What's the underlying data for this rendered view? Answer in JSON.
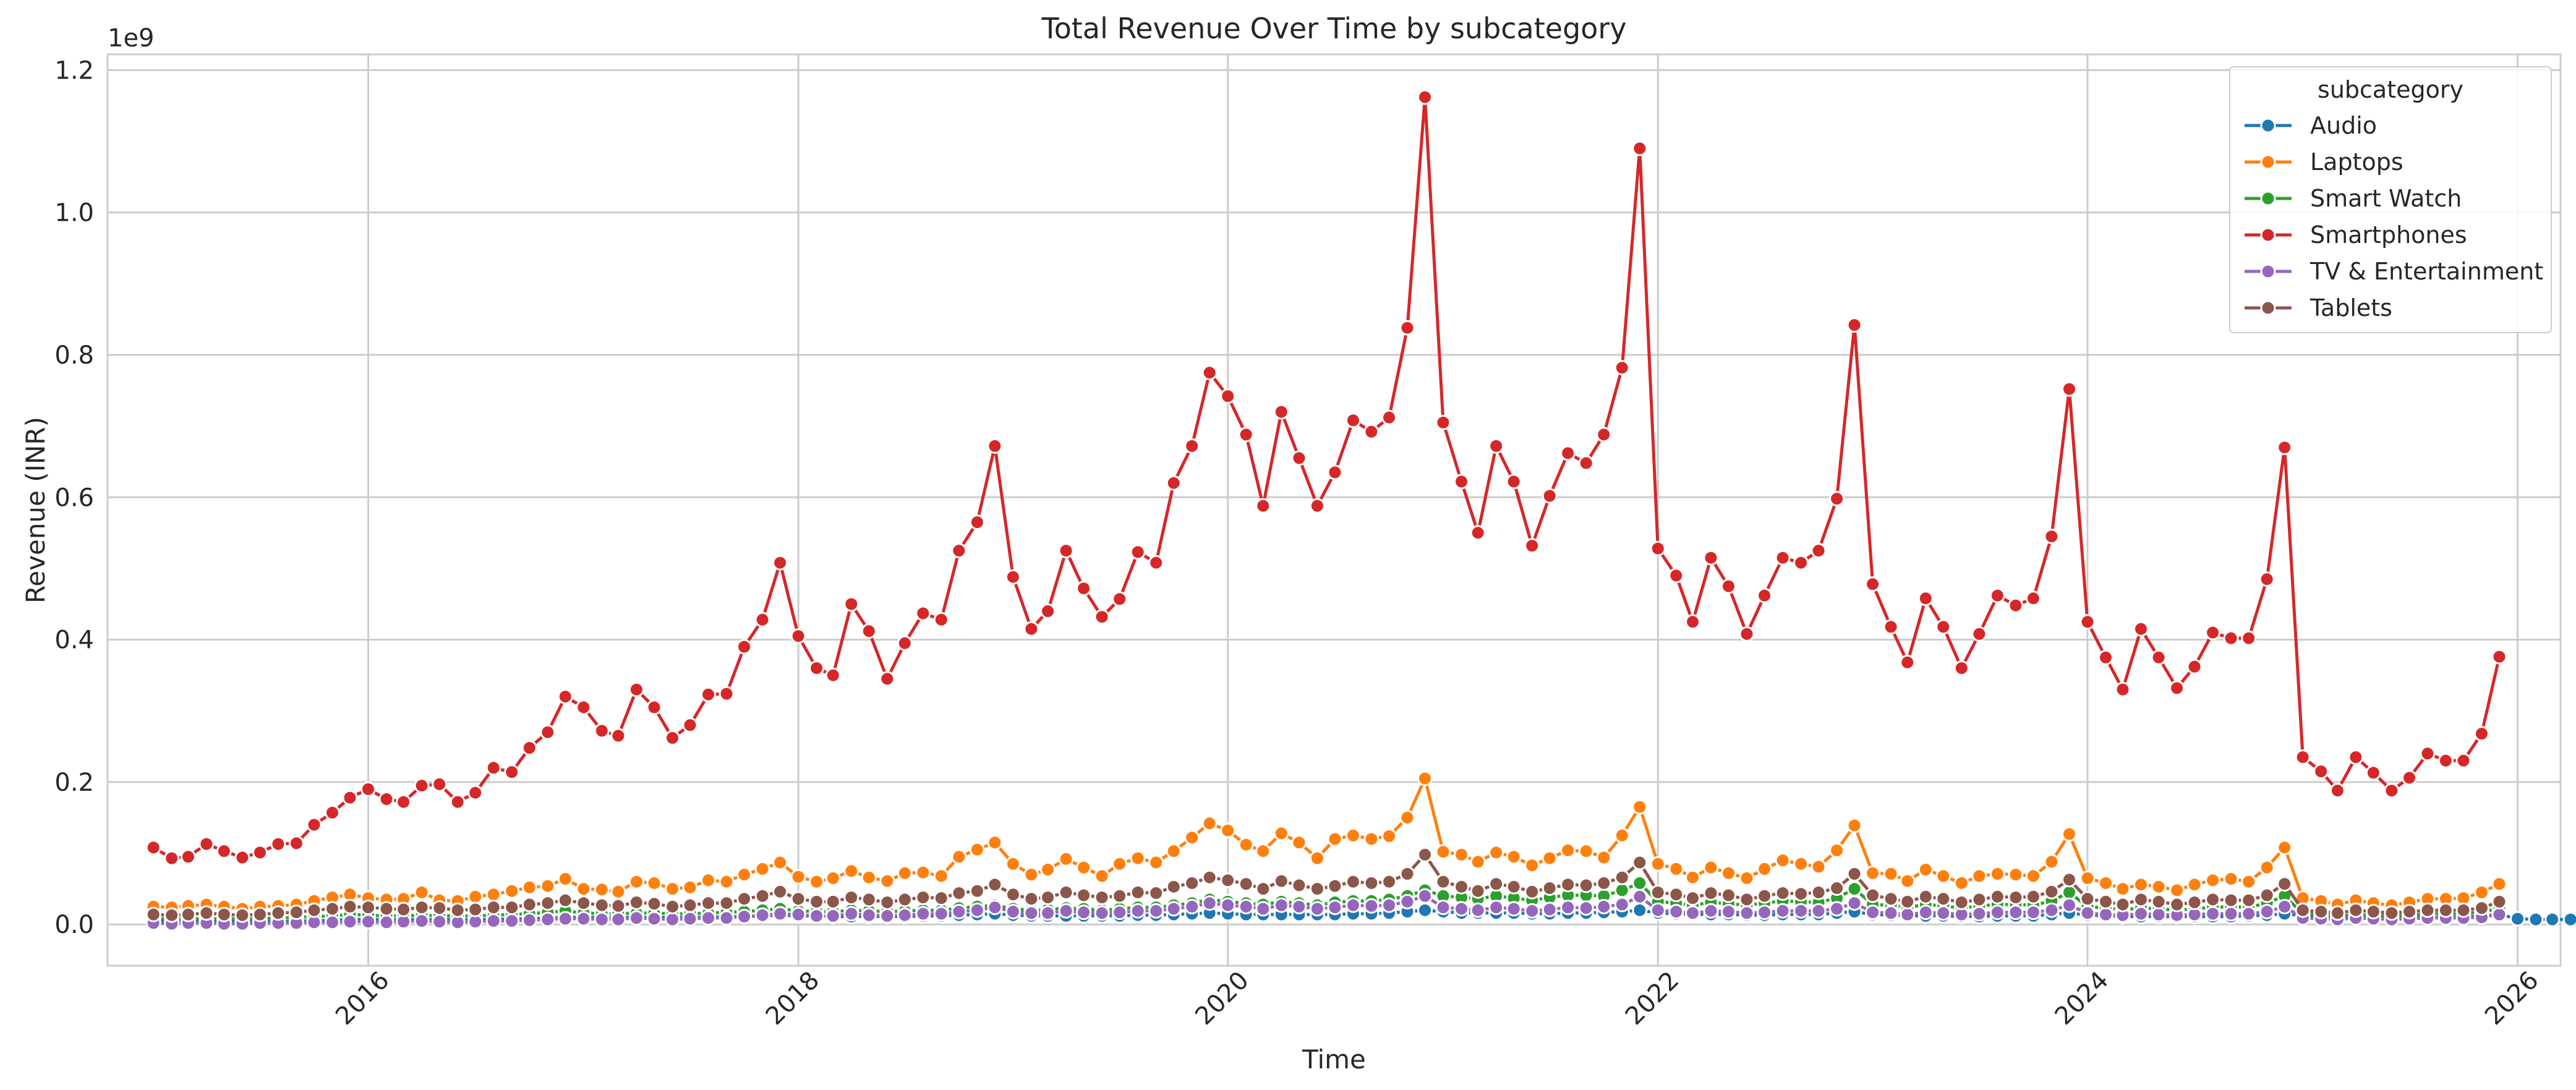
{
  "chart_data": {
    "type": "line",
    "title": "Total Revenue Over Time by subcategory",
    "xlabel": "Time",
    "ylabel": "Revenue (INR)",
    "y_offset_label": "1e9",
    "x_start": "2015-01",
    "x_freq": "monthly",
    "xlim": [
      "2014-10-15",
      "2026-03-15"
    ],
    "ylim": [
      -0.058,
      1.222
    ],
    "x_ticks": [
      "2016",
      "2018",
      "2020",
      "2022",
      "2024",
      "2026"
    ],
    "y_ticks": [
      "0.0",
      "0.2",
      "0.4",
      "0.6",
      "0.8",
      "1.0",
      "1.2"
    ],
    "grid": true,
    "legend": {
      "title": "subcategory",
      "position": "top-right"
    },
    "series": [
      {
        "name": "Audio",
        "color": "#1f77b4",
        "values": [
          0.004,
          0.004,
          0.004,
          0.004,
          0.004,
          0.004,
          0.004,
          0.004,
          0.005,
          0.005,
          0.006,
          0.007,
          0.007,
          0.007,
          0.007,
          0.007,
          0.007,
          0.007,
          0.007,
          0.007,
          0.008,
          0.008,
          0.009,
          0.01,
          0.01,
          0.01,
          0.01,
          0.01,
          0.01,
          0.01,
          0.01,
          0.01,
          0.011,
          0.011,
          0.012,
          0.013,
          0.012,
          0.012,
          0.011,
          0.011,
          0.011,
          0.011,
          0.011,
          0.012,
          0.012,
          0.013,
          0.014,
          0.015,
          0.013,
          0.012,
          0.012,
          0.012,
          0.012,
          0.012,
          0.012,
          0.013,
          0.013,
          0.014,
          0.015,
          0.016,
          0.015,
          0.014,
          0.014,
          0.014,
          0.014,
          0.014,
          0.014,
          0.015,
          0.015,
          0.016,
          0.018,
          0.02,
          0.018,
          0.016,
          0.016,
          0.016,
          0.016,
          0.015,
          0.015,
          0.016,
          0.016,
          0.017,
          0.018,
          0.02,
          0.016,
          0.015,
          0.014,
          0.014,
          0.014,
          0.013,
          0.013,
          0.014,
          0.014,
          0.014,
          0.016,
          0.018,
          0.014,
          0.013,
          0.012,
          0.012,
          0.012,
          0.011,
          0.011,
          0.012,
          0.012,
          0.012,
          0.014,
          0.016,
          0.013,
          0.012,
          0.011,
          0.011,
          0.011,
          0.011,
          0.011,
          0.011,
          0.011,
          0.012,
          0.013,
          0.015,
          0.012,
          0.011,
          0.01,
          0.01,
          0.01,
          0.01,
          0.01,
          0.01,
          0.01,
          0.011,
          0.012,
          0.014,
          0.008,
          0.007,
          0.007,
          0.007,
          0.007,
          0.006,
          0.006,
          0.007,
          0.007,
          0.007,
          0.008,
          0.009
        ]
      },
      {
        "name": "Laptops",
        "color": "#ff7f0e",
        "values": [
          0.025,
          0.024,
          0.026,
          0.028,
          0.025,
          0.022,
          0.025,
          0.026,
          0.028,
          0.033,
          0.038,
          0.042,
          0.037,
          0.035,
          0.036,
          0.045,
          0.034,
          0.033,
          0.039,
          0.042,
          0.047,
          0.052,
          0.054,
          0.064,
          0.05,
          0.049,
          0.046,
          0.06,
          0.058,
          0.05,
          0.052,
          0.062,
          0.06,
          0.07,
          0.078,
          0.087,
          0.067,
          0.06,
          0.065,
          0.075,
          0.066,
          0.061,
          0.072,
          0.073,
          0.068,
          0.095,
          0.105,
          0.115,
          0.085,
          0.07,
          0.077,
          0.092,
          0.08,
          0.068,
          0.085,
          0.093,
          0.087,
          0.103,
          0.122,
          0.142,
          0.132,
          0.112,
          0.103,
          0.128,
          0.115,
          0.093,
          0.12,
          0.125,
          0.12,
          0.124,
          0.15,
          0.205,
          0.102,
          0.098,
          0.088,
          0.101,
          0.095,
          0.083,
          0.093,
          0.104,
          0.103,
          0.094,
          0.125,
          0.165,
          0.085,
          0.078,
          0.066,
          0.08,
          0.072,
          0.065,
          0.078,
          0.09,
          0.085,
          0.081,
          0.104,
          0.139,
          0.072,
          0.071,
          0.061,
          0.077,
          0.068,
          0.058,
          0.068,
          0.071,
          0.07,
          0.068,
          0.088,
          0.127,
          0.065,
          0.058,
          0.05,
          0.056,
          0.053,
          0.048,
          0.056,
          0.062,
          0.064,
          0.06,
          0.08,
          0.108,
          0.037,
          0.033,
          0.028,
          0.034,
          0.03,
          0.027,
          0.031,
          0.036,
          0.036,
          0.037,
          0.045,
          0.057
        ]
      },
      {
        "name": "Smart Watch",
        "color": "#2ca02c",
        "values": [
          0.008,
          0.008,
          0.008,
          0.008,
          0.008,
          0.008,
          0.008,
          0.009,
          0.01,
          0.011,
          0.012,
          0.014,
          0.013,
          0.012,
          0.012,
          0.013,
          0.012,
          0.012,
          0.012,
          0.013,
          0.014,
          0.015,
          0.017,
          0.019,
          0.016,
          0.015,
          0.015,
          0.016,
          0.016,
          0.015,
          0.015,
          0.016,
          0.017,
          0.018,
          0.02,
          0.022,
          0.019,
          0.018,
          0.018,
          0.02,
          0.019,
          0.018,
          0.019,
          0.02,
          0.02,
          0.023,
          0.025,
          0.027,
          0.022,
          0.02,
          0.021,
          0.023,
          0.022,
          0.02,
          0.022,
          0.024,
          0.024,
          0.027,
          0.03,
          0.035,
          0.032,
          0.03,
          0.028,
          0.032,
          0.03,
          0.027,
          0.031,
          0.033,
          0.033,
          0.035,
          0.04,
          0.048,
          0.04,
          0.038,
          0.036,
          0.04,
          0.037,
          0.034,
          0.038,
          0.041,
          0.041,
          0.04,
          0.048,
          0.058,
          0.032,
          0.03,
          0.027,
          0.031,
          0.029,
          0.027,
          0.03,
          0.033,
          0.032,
          0.031,
          0.037,
          0.05,
          0.028,
          0.027,
          0.024,
          0.028,
          0.026,
          0.023,
          0.026,
          0.028,
          0.028,
          0.027,
          0.033,
          0.045,
          0.025,
          0.023,
          0.021,
          0.023,
          0.022,
          0.02,
          0.022,
          0.024,
          0.025,
          0.024,
          0.03,
          0.04,
          0.015,
          0.014,
          0.012,
          0.014,
          0.013,
          0.012,
          0.013,
          0.015,
          0.015,
          0.015,
          0.018,
          0.022
        ]
      },
      {
        "name": "Smartphones",
        "color": "#d62728",
        "values": [
          0.108,
          0.093,
          0.095,
          0.113,
          0.103,
          0.094,
          0.101,
          0.113,
          0.114,
          0.14,
          0.157,
          0.178,
          0.19,
          0.176,
          0.172,
          0.195,
          0.197,
          0.172,
          0.185,
          0.22,
          0.214,
          0.248,
          0.27,
          0.32,
          0.305,
          0.272,
          0.265,
          0.33,
          0.305,
          0.262,
          0.28,
          0.323,
          0.324,
          0.39,
          0.428,
          0.508,
          0.405,
          0.36,
          0.35,
          0.45,
          0.412,
          0.345,
          0.395,
          0.437,
          0.428,
          0.525,
          0.565,
          0.672,
          0.488,
          0.415,
          0.44,
          0.525,
          0.472,
          0.432,
          0.457,
          0.523,
          0.508,
          0.62,
          0.672,
          0.775,
          0.742,
          0.688,
          0.588,
          0.72,
          0.655,
          0.588,
          0.635,
          0.708,
          0.692,
          0.712,
          0.838,
          1.162,
          0.705,
          0.622,
          0.55,
          0.672,
          0.622,
          0.532,
          0.602,
          0.662,
          0.648,
          0.688,
          0.782,
          1.09,
          0.528,
          0.49,
          0.425,
          0.515,
          0.475,
          0.408,
          0.462,
          0.515,
          0.508,
          0.525,
          0.598,
          0.842,
          0.478,
          0.418,
          0.368,
          0.458,
          0.418,
          0.36,
          0.408,
          0.462,
          0.448,
          0.458,
          0.545,
          0.752,
          0.425,
          0.375,
          0.33,
          0.415,
          0.375,
          0.332,
          0.362,
          0.41,
          0.402,
          0.402,
          0.485,
          0.67,
          0.235,
          0.215,
          0.188,
          0.235,
          0.213,
          0.188,
          0.206,
          0.24,
          0.23,
          0.23,
          0.268,
          0.376
        ]
      },
      {
        "name": "TV & Entertainment",
        "color": "#9467bd",
        "values": [
          0.002,
          0.001,
          0.002,
          0.002,
          0.001,
          0.001,
          0.002,
          0.002,
          0.002,
          0.003,
          0.003,
          0.004,
          0.004,
          0.003,
          0.004,
          0.005,
          0.004,
          0.003,
          0.004,
          0.005,
          0.005,
          0.006,
          0.007,
          0.008,
          0.008,
          0.007,
          0.007,
          0.009,
          0.008,
          0.007,
          0.008,
          0.009,
          0.009,
          0.011,
          0.013,
          0.015,
          0.014,
          0.012,
          0.012,
          0.015,
          0.013,
          0.012,
          0.013,
          0.015,
          0.015,
          0.018,
          0.02,
          0.024,
          0.018,
          0.016,
          0.016,
          0.019,
          0.017,
          0.016,
          0.017,
          0.019,
          0.019,
          0.022,
          0.025,
          0.03,
          0.027,
          0.025,
          0.022,
          0.027,
          0.025,
          0.022,
          0.024,
          0.027,
          0.026,
          0.027,
          0.032,
          0.04,
          0.024,
          0.022,
          0.02,
          0.024,
          0.022,
          0.019,
          0.021,
          0.024,
          0.023,
          0.025,
          0.028,
          0.039,
          0.02,
          0.018,
          0.016,
          0.019,
          0.018,
          0.016,
          0.017,
          0.019,
          0.019,
          0.019,
          0.022,
          0.03,
          0.017,
          0.016,
          0.014,
          0.017,
          0.016,
          0.014,
          0.015,
          0.017,
          0.017,
          0.017,
          0.02,
          0.027,
          0.016,
          0.014,
          0.013,
          0.015,
          0.014,
          0.013,
          0.014,
          0.015,
          0.015,
          0.015,
          0.018,
          0.025,
          0.009,
          0.008,
          0.007,
          0.009,
          0.008,
          0.007,
          0.008,
          0.009,
          0.009,
          0.009,
          0.01,
          0.014
        ]
      },
      {
        "name": "Tablets",
        "color": "#8c564b",
        "values": [
          0.014,
          0.013,
          0.014,
          0.016,
          0.014,
          0.013,
          0.014,
          0.016,
          0.017,
          0.02,
          0.022,
          0.025,
          0.024,
          0.022,
          0.021,
          0.024,
          0.023,
          0.02,
          0.021,
          0.024,
          0.024,
          0.028,
          0.03,
          0.034,
          0.03,
          0.027,
          0.026,
          0.031,
          0.029,
          0.025,
          0.027,
          0.03,
          0.03,
          0.036,
          0.04,
          0.046,
          0.036,
          0.032,
          0.032,
          0.038,
          0.035,
          0.031,
          0.035,
          0.038,
          0.037,
          0.044,
          0.047,
          0.056,
          0.042,
          0.036,
          0.038,
          0.045,
          0.041,
          0.038,
          0.04,
          0.045,
          0.044,
          0.053,
          0.058,
          0.066,
          0.062,
          0.057,
          0.05,
          0.061,
          0.055,
          0.05,
          0.054,
          0.06,
          0.058,
          0.06,
          0.071,
          0.098,
          0.06,
          0.053,
          0.047,
          0.057,
          0.053,
          0.046,
          0.051,
          0.056,
          0.055,
          0.058,
          0.066,
          0.087,
          0.045,
          0.042,
          0.037,
          0.044,
          0.041,
          0.035,
          0.04,
          0.044,
          0.043,
          0.045,
          0.051,
          0.071,
          0.041,
          0.036,
          0.032,
          0.039,
          0.036,
          0.031,
          0.035,
          0.039,
          0.038,
          0.039,
          0.046,
          0.063,
          0.036,
          0.032,
          0.028,
          0.035,
          0.032,
          0.028,
          0.031,
          0.035,
          0.034,
          0.034,
          0.041,
          0.057,
          0.02,
          0.018,
          0.016,
          0.02,
          0.018,
          0.016,
          0.018,
          0.02,
          0.02,
          0.02,
          0.023,
          0.032
        ]
      }
    ]
  }
}
